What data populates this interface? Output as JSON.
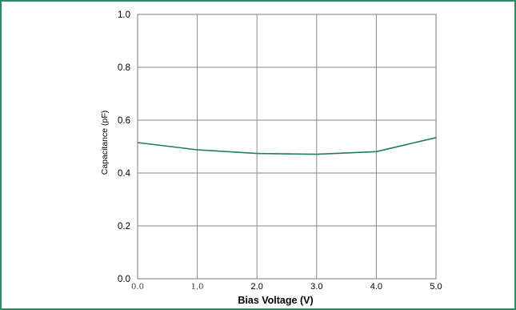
{
  "chart_data": {
    "type": "line",
    "xlabel": "Bias Voltage (V)",
    "ylabel": "Capacitance (pF)",
    "xlim": [
      0,
      5
    ],
    "ylim": [
      0,
      1
    ],
    "grid": true,
    "x_ticks": [
      "0.0",
      "1.0",
      "2.0",
      "3.0",
      "4.0",
      "5.0"
    ],
    "y_ticks": [
      "0.0",
      "0.2",
      "0.4",
      "0.6",
      "0.8",
      "1.0"
    ],
    "series": [
      {
        "color": "#1f7f5c",
        "x": [
          0,
          1,
          2,
          3,
          4,
          5
        ],
        "y": [
          0.515,
          0.488,
          0.474,
          0.471,
          0.481,
          0.534
        ]
      }
    ]
  }
}
